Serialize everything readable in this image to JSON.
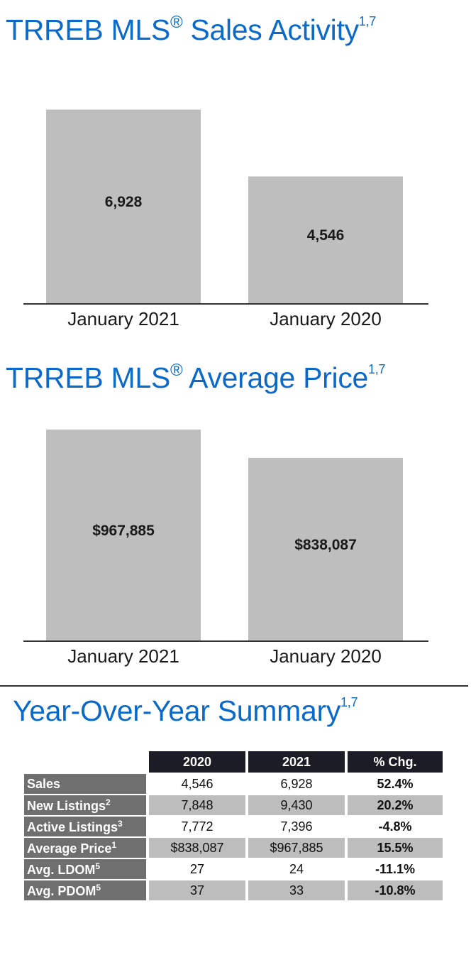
{
  "sections": {
    "sales": {
      "title": "TRREB MLS",
      "reg": "®",
      "title_main": " Sales Activity",
      "footnote": "1,7"
    },
    "price": {
      "title": "TRREB MLS",
      "reg": "®",
      "title_main": " Average Price",
      "footnote": "1,7"
    },
    "summary": {
      "title": "Year-Over-Year Summary",
      "footnote": "1,7"
    }
  },
  "chart_data": [
    {
      "type": "bar",
      "title": "TRREB MLS® Sales Activity",
      "categories": [
        "January 2021",
        "January 2020"
      ],
      "values": [
        6928,
        4546
      ],
      "value_labels": [
        "6,928",
        "4,546"
      ],
      "ylim": [
        0,
        7800
      ],
      "grid": false
    },
    {
      "type": "bar",
      "title": "TRREB MLS® Average Price",
      "categories": [
        "January 2021",
        "January 2020"
      ],
      "values": [
        967885,
        838087
      ],
      "value_labels": [
        "$967,885",
        "$838,087"
      ],
      "ylim": [
        0,
        1000000
      ],
      "grid": false
    },
    {
      "type": "table",
      "title": "Year-Over-Year Summary",
      "columns": [
        "2020",
        "2021",
        "% Chg."
      ],
      "rows": [
        {
          "label": "Sales",
          "sup": "",
          "v2020": "4,546",
          "v2021": "6,928",
          "chg": "52.4%"
        },
        {
          "label": "New Listings",
          "sup": "2",
          "v2020": "7,848",
          "v2021": "9,430",
          "chg": "20.2%"
        },
        {
          "label": "Active Listings",
          "sup": "3",
          "v2020": "7,772",
          "v2021": "7,396",
          "chg": "-4.8%"
        },
        {
          "label": "Average Price",
          "sup": "1",
          "v2020": "$838,087",
          "v2021": "$967,885",
          "chg": "15.5%"
        },
        {
          "label": "Avg. LDOM",
          "sup": "5",
          "v2020": "27",
          "v2021": "24",
          "chg": "-11.1%"
        },
        {
          "label": "Avg. PDOM",
          "sup": "5",
          "v2020": "37",
          "v2021": "33",
          "chg": "-10.8%"
        }
      ]
    }
  ]
}
